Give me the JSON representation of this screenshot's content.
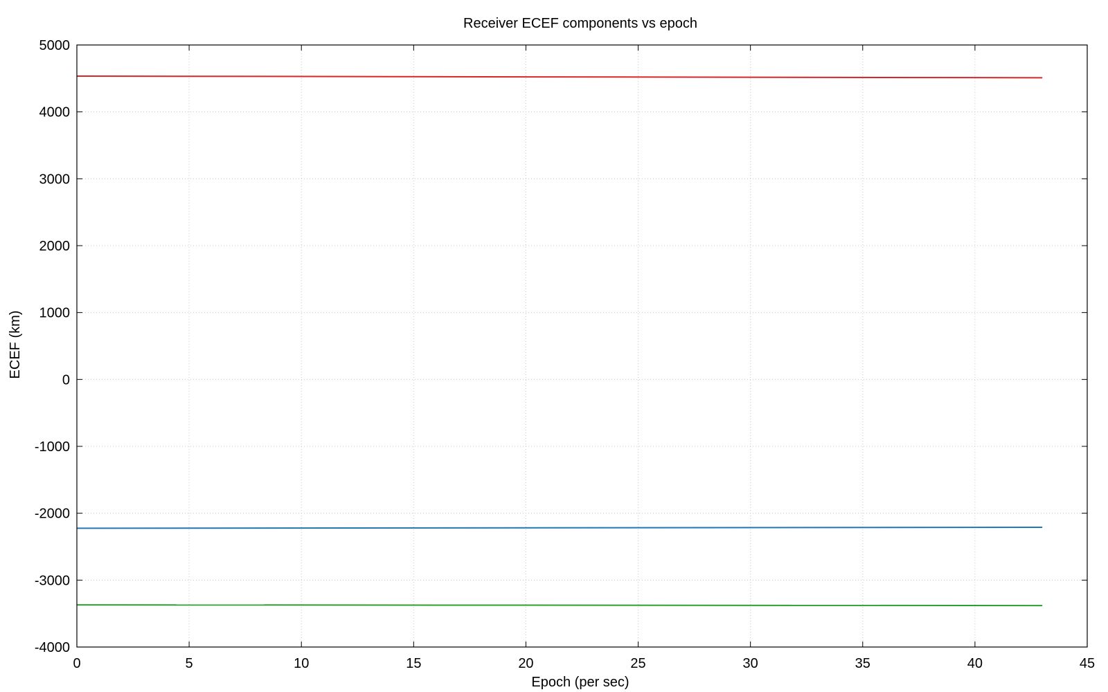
{
  "chart_data": {
    "type": "line",
    "title": "Receiver ECEF components vs epoch",
    "xlabel": "Epoch (per sec)",
    "ylabel": "ECEF (km)",
    "xlim": [
      0,
      45
    ],
    "ylim": [
      -4000,
      5000
    ],
    "xticks": [
      0,
      5,
      10,
      15,
      20,
      25,
      30,
      35,
      40,
      45
    ],
    "yticks": [
      -4000,
      -3000,
      -2000,
      -1000,
      0,
      1000,
      2000,
      3000,
      4000,
      5000
    ],
    "grid": true,
    "legend": "none",
    "series": [
      {
        "color": "#d62728",
        "x": [
          0,
          43
        ],
        "y": [
          4535,
          4510
        ]
      },
      {
        "color": "#1f77b4",
        "x": [
          0,
          43
        ],
        "y": [
          -2225,
          -2210
        ]
      },
      {
        "color": "#2ca02c",
        "x": [
          0,
          43
        ],
        "y": [
          -3370,
          -3380
        ]
      }
    ]
  }
}
